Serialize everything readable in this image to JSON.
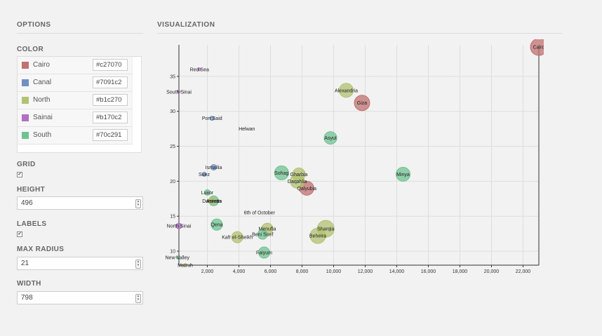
{
  "options": {
    "title": "OPTIONS",
    "color_label": "COLOR",
    "colors": [
      {
        "name": "Cairo",
        "hex": "#c27070"
      },
      {
        "name": "Canal",
        "hex": "#7091c2"
      },
      {
        "name": "North",
        "hex": "#b1c270"
      },
      {
        "name": "Sainai",
        "hex": "#b170c2"
      },
      {
        "name": "South",
        "hex": "#70c291"
      }
    ],
    "grid_label": "GRID",
    "grid_checked": true,
    "height_label": "HEIGHT",
    "height_value": "496",
    "labels_label": "LABELS",
    "labels_checked": true,
    "max_radius_label": "MAX RADIUS",
    "max_radius_value": "21",
    "width_label": "WIDTH",
    "width_value": "798"
  },
  "visualization": {
    "title": "VISUALIZATION"
  },
  "chart_data": {
    "type": "scatter",
    "title": "",
    "xlabel": "",
    "ylabel": "",
    "xlim": [
      200,
      23000
    ],
    "ylim": [
      8,
      39.5
    ],
    "x_ticks": [
      "2,000",
      "4,000",
      "6,000",
      "8,000",
      "10,000",
      "12,000",
      "14,000",
      "16,000",
      "18,000",
      "20,000",
      "22,000"
    ],
    "y_ticks": [
      "10",
      "15",
      "20",
      "25",
      "30",
      "35"
    ],
    "grid": true,
    "points": [
      {
        "label": "Cairo",
        "x": 23000,
        "y": 39.2,
        "r": 12,
        "group": "Cairo"
      },
      {
        "label": "Giza",
        "x": 11800,
        "y": 31.2,
        "r": 11,
        "group": "Cairo"
      },
      {
        "label": "Qalyubia",
        "x": 8300,
        "y": 19.0,
        "r": 10,
        "group": "Cairo"
      },
      {
        "label": "Red Sea",
        "x": 1500,
        "y": 36.0,
        "r": 2,
        "group": "Sainai"
      },
      {
        "label": "South Sinai",
        "x": 200,
        "y": 32.8,
        "r": 2,
        "group": "Sainai"
      },
      {
        "label": "North Sinai",
        "x": 200,
        "y": 13.6,
        "r": 4,
        "group": "Sainai"
      },
      {
        "label": "Port Said",
        "x": 2300,
        "y": 29.0,
        "r": 3,
        "group": "Canal"
      },
      {
        "label": "Ismailia",
        "x": 2400,
        "y": 22.0,
        "r": 4,
        "group": "Canal"
      },
      {
        "label": "Suez",
        "x": 1800,
        "y": 21.0,
        "r": 3,
        "group": "Canal"
      },
      {
        "label": "Helwan",
        "x": 4500,
        "y": 27.5,
        "r": 0,
        "group": "Cairo"
      },
      {
        "label": "6th of October",
        "x": 5300,
        "y": 15.5,
        "r": 0,
        "group": "Cairo"
      },
      {
        "label": "Alexandria",
        "x": 10800,
        "y": 33.0,
        "r": 10,
        "group": "North"
      },
      {
        "label": "Sharqia",
        "x": 9500,
        "y": 13.2,
        "r": 12,
        "group": "North"
      },
      {
        "label": "Beheira",
        "x": 9000,
        "y": 12.2,
        "r": 11,
        "group": "North"
      },
      {
        "label": "Gharbia",
        "x": 7800,
        "y": 21.0,
        "r": 9,
        "group": "North"
      },
      {
        "label": "Daqahlia",
        "x": 7700,
        "y": 20.0,
        "r": 10,
        "group": "North"
      },
      {
        "label": "Menufia",
        "x": 5800,
        "y": 13.2,
        "r": 8,
        "group": "North"
      },
      {
        "label": "Kafr el-Sheikh",
        "x": 3900,
        "y": 12.0,
        "r": 8,
        "group": "North"
      },
      {
        "label": "Damietta",
        "x": 2300,
        "y": 17.2,
        "r": 5,
        "group": "North"
      },
      {
        "label": "Matruh",
        "x": 600,
        "y": 8.0,
        "r": 2,
        "group": "North"
      },
      {
        "label": "Asyut",
        "x": 9800,
        "y": 26.2,
        "r": 9,
        "group": "South"
      },
      {
        "label": "Minya",
        "x": 14400,
        "y": 21.0,
        "r": 10,
        "group": "South"
      },
      {
        "label": "Sohag",
        "x": 6700,
        "y": 21.2,
        "r": 10,
        "group": "South"
      },
      {
        "label": "Beni Suef",
        "x": 5500,
        "y": 12.4,
        "r": 7,
        "group": "South"
      },
      {
        "label": "Faiyum",
        "x": 5600,
        "y": 9.8,
        "r": 8,
        "group": "South"
      },
      {
        "label": "Qena",
        "x": 2600,
        "y": 13.8,
        "r": 8,
        "group": "South"
      },
      {
        "label": "Luxor",
        "x": 2000,
        "y": 18.4,
        "r": 4,
        "group": "South"
      },
      {
        "label": "Aswan",
        "x": 2400,
        "y": 17.2,
        "r": 7,
        "group": "South"
      },
      {
        "label": "New Valley",
        "x": 100,
        "y": 9.1,
        "r": 2,
        "group": "South"
      }
    ]
  }
}
